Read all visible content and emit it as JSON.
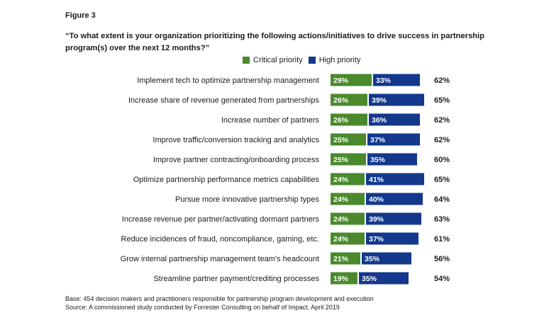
{
  "figure_label": "Figure 3",
  "question": "“To what extent is your organization prioritizing the following actions/initiatives to drive success in partnership program(s) over the next 12 months?”",
  "colors": {
    "critical": "#4a8a2c",
    "high": "#13388c",
    "bar_text": "#ffffff"
  },
  "chart_data": {
    "type": "bar",
    "orientation": "horizontal",
    "stacked": true,
    "categories": [
      "Implement tech to optimize partnership management",
      "Increase share of revenue generated from partnerships",
      "Increase number of partners",
      "Improve traffic/conversion tracking and analytics",
      "Improve partner contracting/onboarding process",
      "Optimize partnership performance metrics capabilities",
      "Pursue more innovative partnership types",
      "Increase revenue per partner/activating dormant partners",
      "Reduce incidences of fraud, noncompliance, gaming, etc.",
      "Grow internal partnership management team's headcount",
      "Streamline partner payment/crediting processes"
    ],
    "series": [
      {
        "name": "Critical priority",
        "values": [
          29,
          26,
          26,
          25,
          25,
          24,
          24,
          24,
          24,
          21,
          19
        ],
        "labels": [
          "29%",
          "26%",
          "26%",
          "25%",
          "25%",
          "24%",
          "24%",
          "24%",
          "24%",
          "21%",
          "19%"
        ]
      },
      {
        "name": "High priority",
        "values": [
          33,
          39,
          36,
          37,
          35,
          41,
          40,
          39,
          37,
          35,
          35
        ],
        "labels": [
          "33%",
          "39%",
          "36%",
          "37%",
          "35%",
          "41%",
          "40%",
          "39%",
          "37%",
          "35%",
          "35%"
        ]
      }
    ],
    "totals": [
      62,
      65,
      62,
      62,
      60,
      65,
      64,
      63,
      61,
      56,
      54
    ],
    "total_labels": [
      "62%",
      "65%",
      "62%",
      "62%",
      "60%",
      "65%",
      "64%",
      "63%",
      "61%",
      "56%",
      "54%"
    ],
    "legend_position": "top",
    "grid": false
  },
  "footnotes": {
    "base": "Base: 454 decision makers and practitioners responsible for partnership program development and execution",
    "source": "Source: A commissioned study conducted by Forrester Consulting on behalf of Impact, April 2019"
  }
}
